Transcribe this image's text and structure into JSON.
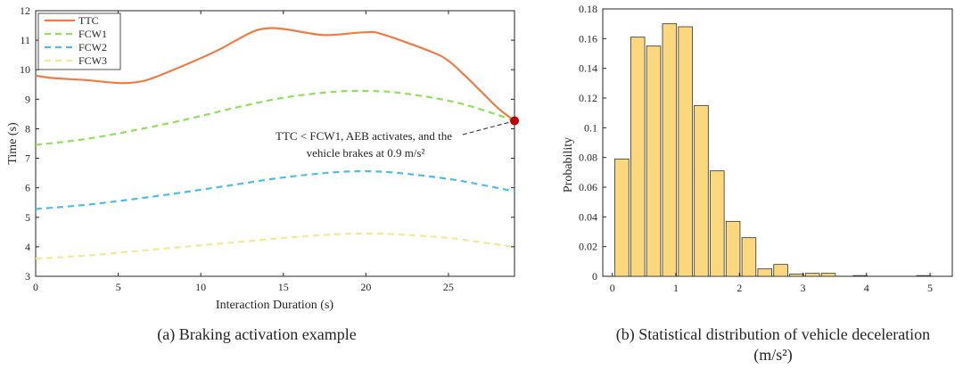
{
  "chart_data": [
    {
      "type": "line",
      "title": "",
      "caption": "(a) Braking activation example",
      "xlabel": "Interaction Duration (s)",
      "ylabel": "Time (s)",
      "xlim": [
        0,
        29
      ],
      "ylim": [
        3,
        12
      ],
      "xticks": [
        0,
        5,
        10,
        15,
        20,
        25
      ],
      "yticks": [
        3,
        4,
        5,
        6,
        7,
        8,
        9,
        10,
        11,
        12
      ],
      "legend_position": "top-left",
      "series": [
        {
          "name": "TTC",
          "style": "solid",
          "color": "#f07c45",
          "x": [
            0,
            1,
            3,
            5,
            6,
            7,
            9,
            11,
            13,
            14,
            15,
            17,
            18,
            20,
            21,
            24,
            25,
            26,
            27,
            28,
            29
          ],
          "y": [
            9.8,
            9.72,
            9.65,
            9.55,
            9.57,
            9.7,
            10.15,
            10.65,
            11.25,
            11.4,
            11.38,
            11.2,
            11.18,
            11.27,
            11.2,
            10.6,
            10.3,
            9.8,
            9.25,
            8.7,
            8.27
          ]
        },
        {
          "name": "FCW1",
          "style": "dashed",
          "color": "#8fe05a",
          "x": [
            0,
            3,
            6,
            9,
            12,
            15,
            18,
            20,
            22,
            25,
            27,
            29
          ],
          "y": [
            7.45,
            7.65,
            7.95,
            8.3,
            8.7,
            9.05,
            9.25,
            9.28,
            9.22,
            8.95,
            8.65,
            8.27
          ]
        },
        {
          "name": "FCW2",
          "style": "dashed",
          "color": "#4dbde8",
          "x": [
            0,
            3,
            6,
            9,
            12,
            15,
            18,
            20,
            22,
            25,
            27,
            29
          ],
          "y": [
            5.28,
            5.42,
            5.62,
            5.85,
            6.1,
            6.35,
            6.52,
            6.56,
            6.5,
            6.3,
            6.1,
            5.88
          ]
        },
        {
          "name": "FCW3",
          "style": "dashed",
          "color": "#f2ea96",
          "x": [
            0,
            3,
            6,
            9,
            12,
            15,
            18,
            20,
            22,
            25,
            27,
            29
          ],
          "y": [
            3.6,
            3.7,
            3.85,
            4.0,
            4.15,
            4.3,
            4.42,
            4.45,
            4.42,
            4.3,
            4.15,
            4.0
          ]
        }
      ],
      "marker": {
        "x": 29,
        "y": 8.27,
        "color": "#c00000"
      },
      "annotation": {
        "line1": "TTC < FCW1, AEB activates, and the",
        "line2": "vehicle brakes at 0.9 m/s²",
        "points_to": [
          29,
          8.27
        ]
      }
    },
    {
      "type": "bar",
      "title": "",
      "caption_line1": "(b) Statistical distribution of vehicle deceleration",
      "caption_line2": "(m/s²)",
      "xlabel": "",
      "ylabel": "Probability",
      "xlim": [
        -0.15,
        5.35
      ],
      "ylim": [
        0,
        0.18
      ],
      "xticks": [
        0,
        1,
        2,
        3,
        4,
        5
      ],
      "yticks": [
        0,
        0.02,
        0.04,
        0.06,
        0.08,
        0.1,
        0.12,
        0.14,
        0.16,
        0.18
      ],
      "ytick_labels": [
        "0",
        "0.02",
        "0.04",
        "0.06",
        "0.08",
        "0.1",
        "0.12",
        "0.14",
        "0.16",
        "0.18"
      ],
      "bar_color": "#fbd77e",
      "bar_width": 0.22,
      "x": [
        0.15,
        0.4,
        0.65,
        0.9,
        1.15,
        1.4,
        1.65,
        1.9,
        2.15,
        2.4,
        2.65,
        2.9,
        3.15,
        3.4,
        3.65,
        3.9,
        4.15,
        4.4,
        4.65,
        4.9,
        5.15
      ],
      "values": [
        0.079,
        0.161,
        0.155,
        0.17,
        0.168,
        0.115,
        0.071,
        0.037,
        0.026,
        0.005,
        0.008,
        0.0015,
        0.002,
        0.002,
        0.0,
        0.0005,
        0.0,
        0.0,
        0.0,
        0.0005,
        0.0
      ]
    }
  ]
}
